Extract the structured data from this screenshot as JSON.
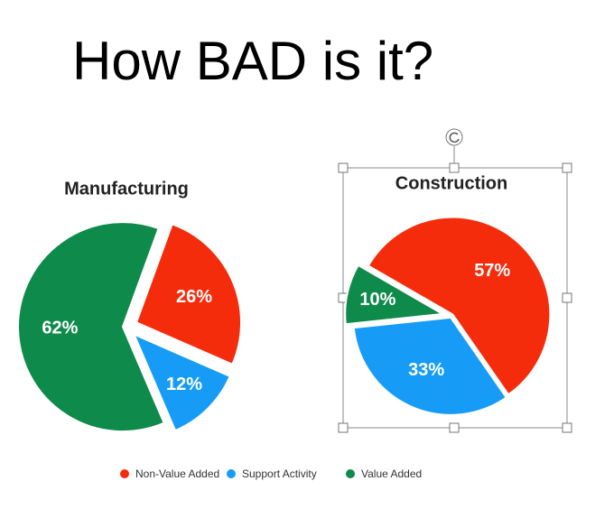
{
  "title": "How BAD is it?",
  "chart_data": [
    {
      "type": "pie",
      "title": "Manufacturing",
      "categories": [
        "Non-Value Added",
        "Support Activity",
        "Value Added"
      ],
      "values": [
        26,
        12,
        62
      ],
      "value_labels": [
        "26%",
        "12%",
        "62%"
      ],
      "colors": [
        "#f52c0c",
        "#169cf6",
        "#0e8a4a"
      ]
    },
    {
      "type": "pie",
      "title": "Construction",
      "categories": [
        "Non-Value Added",
        "Support Activity",
        "Value Added"
      ],
      "values": [
        57,
        33,
        10
      ],
      "value_labels": [
        "57%",
        "33%",
        "10%"
      ],
      "colors": [
        "#f52c0c",
        "#169cf6",
        "#0e8a4a"
      ]
    }
  ]
}
